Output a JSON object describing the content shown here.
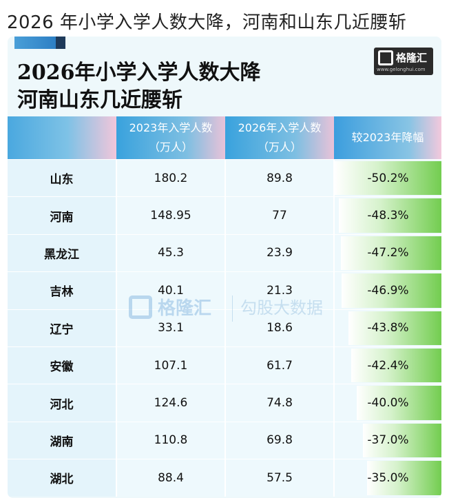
{
  "post_title": "2026 年小学入学人数大降，河南和山东几近腰斩",
  "card": {
    "title_line1": "2026年小学入学人数大降",
    "title_line2": "河南山东几近腰斩"
  },
  "logo": {
    "name": "格隆汇",
    "url": "www.gelonghui.com"
  },
  "watermark": {
    "logo_text": "格隆汇",
    "logo_url": "gelonghui.com",
    "source_text": "勾股大数据",
    "source_url": "www.gogudata.com"
  },
  "colors": {
    "header_blue": "#39a2dd",
    "header_pink": "#f2c6da",
    "bar_green": "#73cd50",
    "card_bg": "#eef8fb"
  },
  "chart_data": {
    "type": "table",
    "headers": [
      "",
      "2023年入学人数（万人）",
      "2026年入学人数（万人）",
      "较2023年降幅"
    ],
    "header_lines": [
      [
        "",
        ""
      ],
      [
        "2023年入学人数",
        "（万人）"
      ],
      [
        "2026年入学人数",
        "（万人）"
      ],
      [
        "较2023年降幅",
        ""
      ]
    ],
    "rows": [
      {
        "province": "山东",
        "enroll_2023": "180.2",
        "enroll_2026": "89.8",
        "change": "-50.2%",
        "change_value": -50.2
      },
      {
        "province": "河南",
        "enroll_2023": "148.95",
        "enroll_2026": "77",
        "change": "-48.3%",
        "change_value": -48.3
      },
      {
        "province": "黑龙江",
        "enroll_2023": "45.3",
        "enroll_2026": "23.9",
        "change": "-47.2%",
        "change_value": -47.2
      },
      {
        "province": "吉林",
        "enroll_2023": "40.1",
        "enroll_2026": "21.3",
        "change": "-46.9%",
        "change_value": -46.9
      },
      {
        "province": "辽宁",
        "enroll_2023": "33.1",
        "enroll_2026": "18.6",
        "change": "-43.8%",
        "change_value": -43.8
      },
      {
        "province": "安徽",
        "enroll_2023": "107.1",
        "enroll_2026": "61.7",
        "change": "-42.4%",
        "change_value": -42.4
      },
      {
        "province": "河北",
        "enroll_2023": "124.6",
        "enroll_2026": "74.8",
        "change": "-40.0%",
        "change_value": -40.0
      },
      {
        "province": "湖南",
        "enroll_2023": "110.8",
        "enroll_2026": "69.8",
        "change": "-37.0%",
        "change_value": -37.0
      },
      {
        "province": "湖北",
        "enroll_2023": "88.4",
        "enroll_2026": "57.5",
        "change": "-35.0%",
        "change_value": -35.0
      }
    ]
  }
}
